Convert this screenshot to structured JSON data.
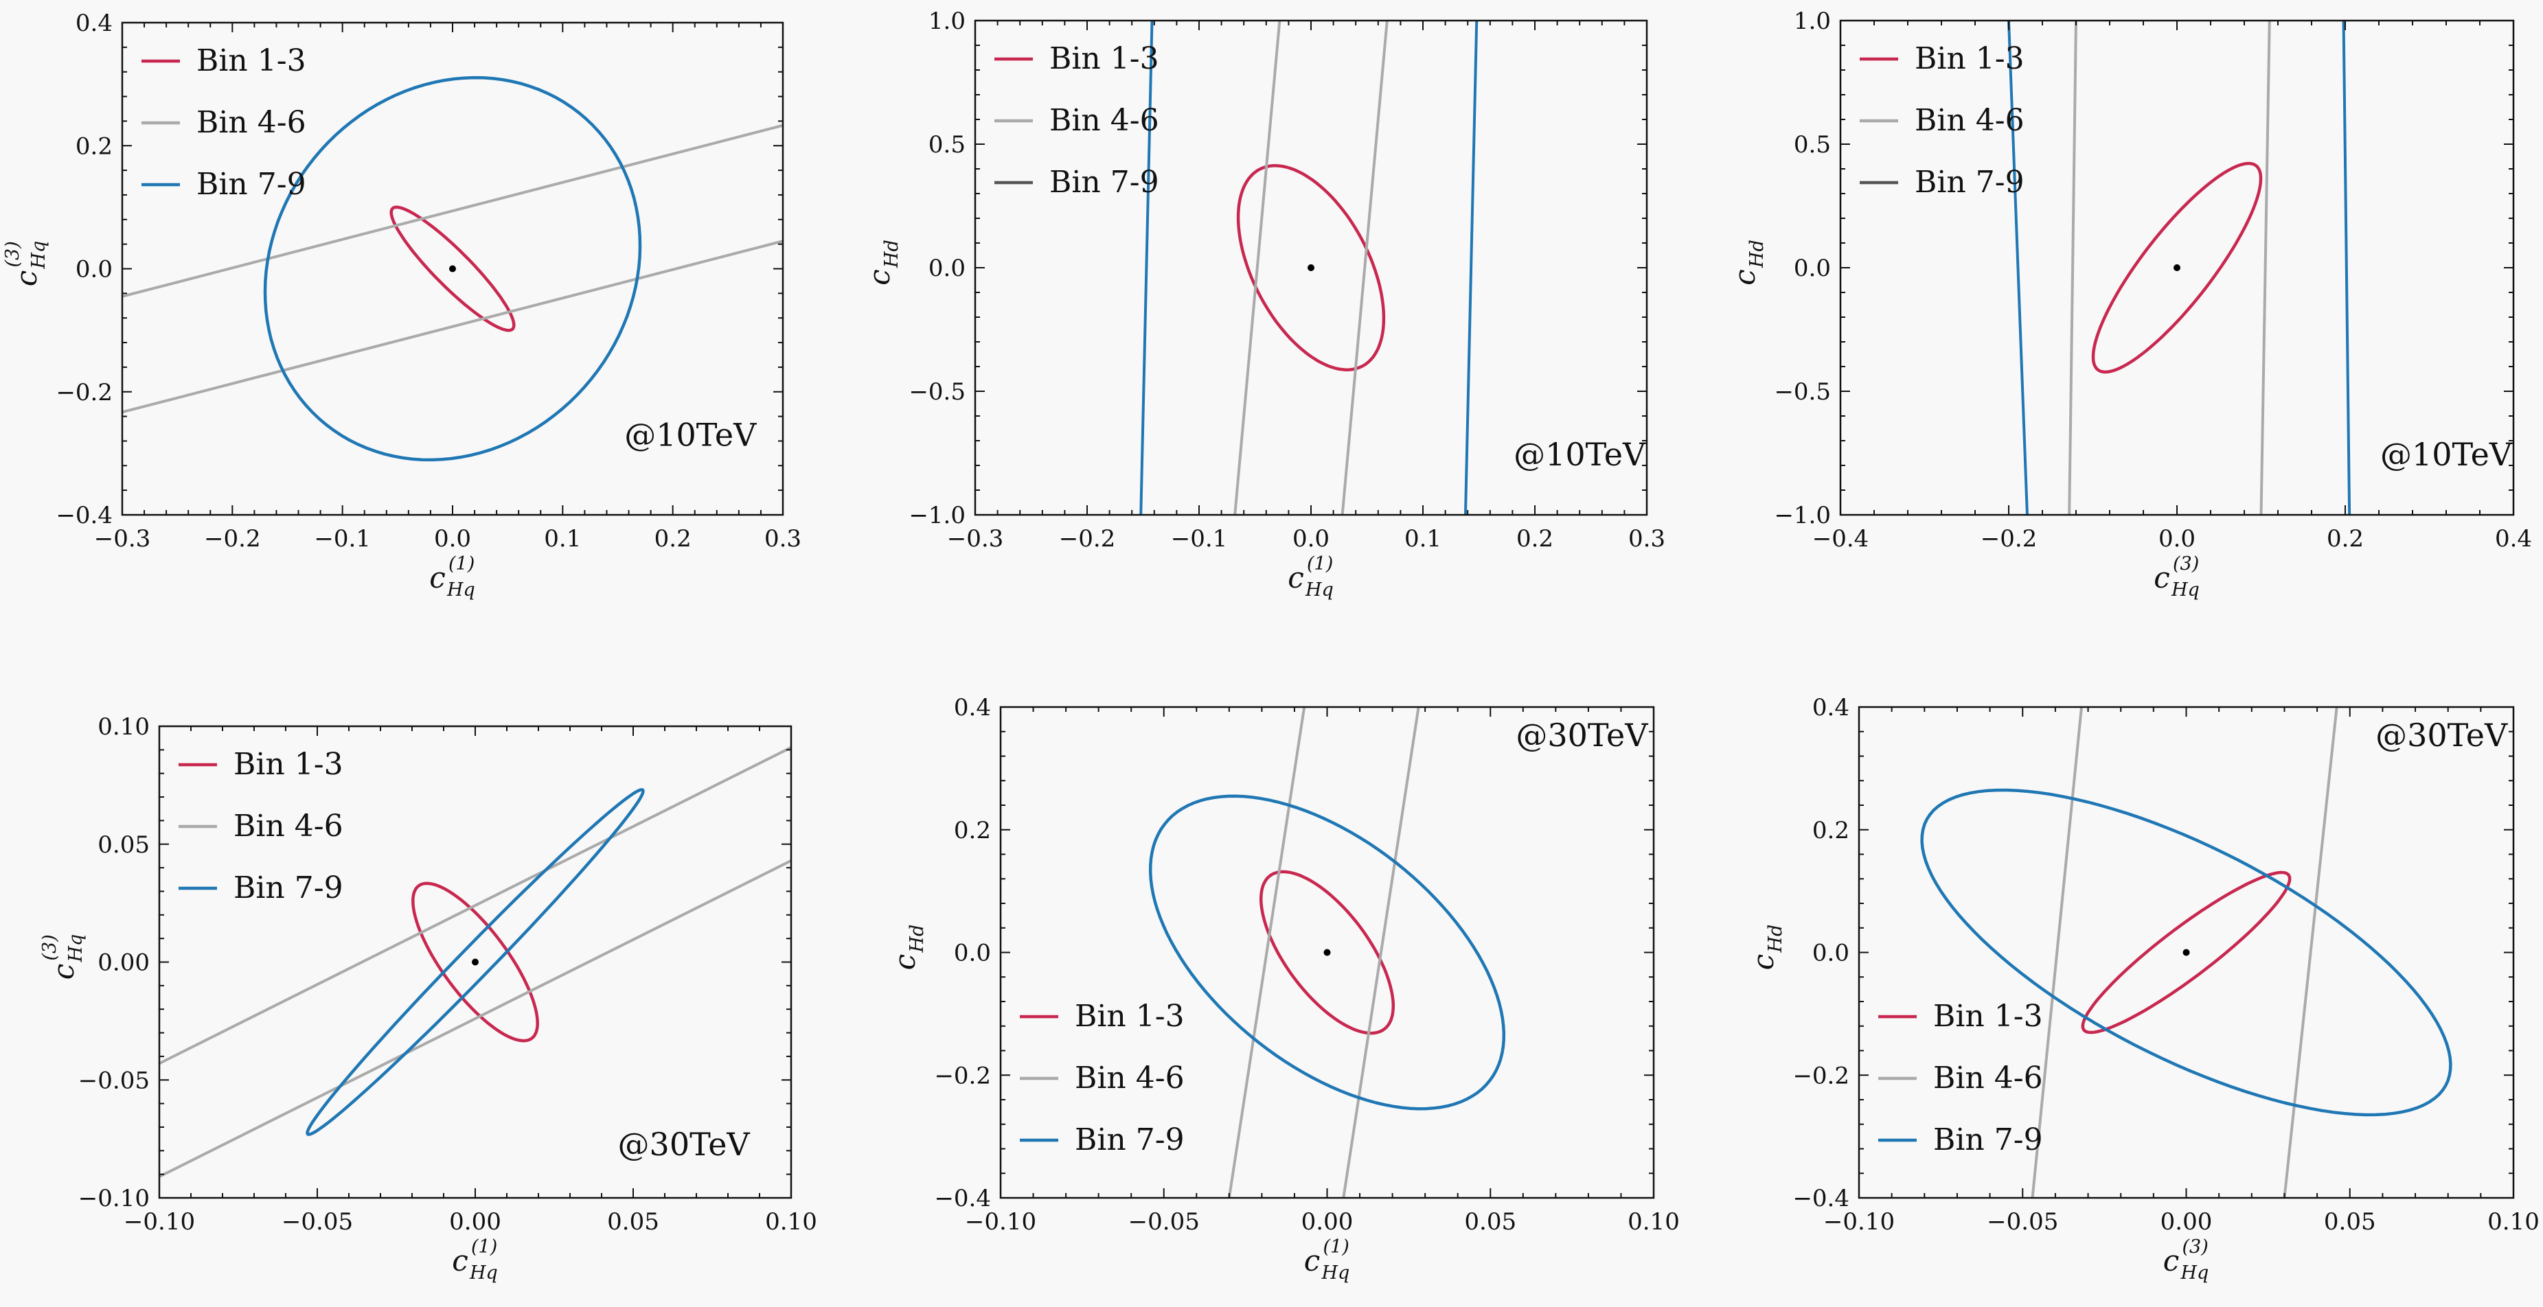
{
  "colors": {
    "bin_1_3": "#c8284f",
    "bin_4_6": "#aaaaaa",
    "bin_7_9": "#1f77b4",
    "bin_7_9_legend_panel_2_3": "#555555",
    "center": "#000000"
  },
  "chart_data": [
    {
      "type": "line",
      "panel": 1,
      "annotation": "@10TeV",
      "xlabel": "c_{Hq}^{(1)}",
      "ylabel": "c_{Hq}^{(3)}",
      "xlim": [
        -0.3,
        0.3
      ],
      "ylim": [
        -0.4,
        0.4
      ],
      "xticks": [
        "−0.3",
        "−0.2",
        "−0.1",
        "0.0",
        "0.1",
        "0.2",
        "0.3"
      ],
      "yticks": [
        "−0.4",
        "−0.2",
        "0.0",
        "0.2",
        "0.4"
      ],
      "legend": {
        "position": "top-left",
        "entries": [
          "Bin 1-3",
          "Bin 4-6",
          "Bin 7-9"
        ]
      },
      "series": [
        {
          "name": "Bin 1-3",
          "color": "#c8284f",
          "ellipse": {
            "cx": 0,
            "cy": 0,
            "points": [
              [
                -0.052,
                0.1
              ],
              [
                0.052,
                -0.1
              ],
              [
                -0.02,
                -0.005
              ],
              [
                0.02,
                0.005
              ]
            ]
          }
        },
        {
          "name": "Bin 4-6",
          "color": "#aaaaaa",
          "lines": [
            [
              [
                -0.3,
                -0.045
              ],
              [
                0.3,
                0.233
              ]
            ],
            [
              [
                -0.3,
                -0.233
              ],
              [
                0.3,
                0.045
              ]
            ]
          ]
        },
        {
          "name": "Bin 7-9",
          "color": "#1f77b4",
          "ellipse": {
            "cx": 0,
            "cy": 0,
            "points": [
              [
                -0.17,
                -0.02
              ],
              [
                0.17,
                0.02
              ],
              [
                0.01,
                0.31
              ],
              [
                -0.01,
                -0.31
              ]
            ]
          }
        }
      ]
    },
    {
      "type": "line",
      "panel": 2,
      "annotation": "@10TeV",
      "xlabel": "c_{Hq}^{(1)}",
      "ylabel": "c_{Hd}",
      "xlim": [
        -0.3,
        0.3
      ],
      "ylim": [
        -1.0,
        1.0
      ],
      "xticks": [
        "−0.3",
        "−0.2",
        "−0.1",
        "0.0",
        "0.1",
        "0.2",
        "0.3"
      ],
      "yticks": [
        "−1.0",
        "−0.5",
        "0.0",
        "0.5",
        "1.0"
      ],
      "legend": {
        "position": "top-right",
        "entries": [
          "Bin 1-3",
          "Bin 4-6",
          "Bin 7-9"
        ]
      },
      "series": [
        {
          "name": "Bin 1-3",
          "color": "#c8284f",
          "ellipse": {
            "cx": 0,
            "cy": 0,
            "points": [
              [
                -0.025,
                0.41
              ],
              [
                0.025,
                -0.41
              ],
              [
                -0.06,
                0.05
              ],
              [
                0.06,
                -0.05
              ]
            ]
          }
        },
        {
          "name": "Bin 4-6",
          "color": "#aaaaaa",
          "lines": [
            [
              [
                -0.068,
                -1.0
              ],
              [
                -0.028,
                1.0
              ]
            ],
            [
              [
                0.028,
                -1.0
              ],
              [
                0.068,
                1.0
              ]
            ]
          ]
        },
        {
          "name": "Bin 7-9",
          "color": "#1f77b4",
          "lines": [
            [
              [
                -0.152,
                -1.0
              ],
              [
                -0.142,
                1.0
              ]
            ],
            [
              [
                0.138,
                -1.0
              ],
              [
                0.148,
                1.0
              ]
            ]
          ]
        }
      ]
    },
    {
      "type": "line",
      "panel": 3,
      "annotation": "@10TeV",
      "xlabel": "c_{Hq}^{(3)}",
      "ylabel": "c_{Hd}",
      "xlim": [
        -0.4,
        0.4
      ],
      "ylim": [
        -1.0,
        1.0
      ],
      "xticks": [
        "−0.4",
        "−0.2",
        "0.0",
        "0.2",
        "0.4"
      ],
      "yticks": [
        "−1.0",
        "−0.5",
        "0.0",
        "0.5",
        "1.0"
      ],
      "legend": {
        "position": "top-right",
        "entries": [
          "Bin 1-3",
          "Bin 4-6",
          "Bin 7-9"
        ]
      },
      "series": [
        {
          "name": "Bin 1-3",
          "color": "#c8284f",
          "ellipse": {
            "cx": 0,
            "cy": 0,
            "points": [
              [
                0.095,
                0.41
              ],
              [
                -0.095,
                -0.41
              ],
              [
                -0.03,
                0.1
              ],
              [
                0.03,
                -0.1
              ]
            ]
          }
        },
        {
          "name": "Bin 4-6",
          "color": "#aaaaaa",
          "lines": [
            [
              [
                -0.128,
                -1.0
              ],
              [
                -0.12,
                1.0
              ]
            ],
            [
              [
                0.1,
                -1.0
              ],
              [
                0.11,
                1.0
              ]
            ]
          ]
        },
        {
          "name": "Bin 7-9",
          "color": "#1f77b4",
          "lines": [
            [
              [
                -0.178,
                -1.0
              ],
              [
                -0.2,
                1.0
              ]
            ],
            [
              [
                0.205,
                -1.0
              ],
              [
                0.198,
                1.0
              ]
            ]
          ]
        }
      ]
    },
    {
      "type": "line",
      "panel": 4,
      "annotation": "@30TeV",
      "xlabel": "c_{Hq}^{(1)}",
      "ylabel": "c_{Hq}^{(3)}",
      "xlim": [
        -0.1,
        0.1
      ],
      "ylim": [
        -0.1,
        0.1
      ],
      "xticks": [
        "−0.10",
        "−0.05",
        "0.00",
        "0.05",
        "0.10"
      ],
      "yticks": [
        "−0.10",
        "−0.05",
        "0.00",
        "0.05",
        "0.10"
      ],
      "legend": {
        "position": "top-left",
        "entries": [
          "Bin 1-3",
          "Bin 4-6",
          "Bin 7-9"
        ]
      },
      "series": [
        {
          "name": "Bin 1-3",
          "color": "#c8284f",
          "ellipse": {
            "cx": 0,
            "cy": 0,
            "points": [
              [
                -0.017,
                0.033
              ],
              [
                0.017,
                -0.033
              ],
              [
                -0.01,
                -0.005
              ],
              [
                0.01,
                0.005
              ]
            ]
          }
        },
        {
          "name": "Bin 4-6",
          "color": "#aaaaaa",
          "lines": [
            [
              [
                -0.1,
                -0.043
              ],
              [
                0.1,
                0.091
              ]
            ],
            [
              [
                -0.1,
                -0.091
              ],
              [
                0.1,
                0.043
              ]
            ]
          ]
        },
        {
          "name": "Bin 7-9",
          "color": "#1f77b4",
          "ellipse": {
            "cx": 0,
            "cy": 0,
            "points": [
              [
                0.053,
                0.073
              ],
              [
                -0.053,
                -0.073
              ],
              [
                -0.004,
                0.004
              ],
              [
                0.004,
                -0.004
              ]
            ]
          }
        }
      ]
    },
    {
      "type": "line",
      "panel": 5,
      "annotation": "@30TeV",
      "xlabel": "c_{Hq}^{(1)}",
      "ylabel": "c_{Hd}",
      "xlim": [
        -0.1,
        0.1
      ],
      "ylim": [
        -0.4,
        0.4
      ],
      "xticks": [
        "−0.10",
        "−0.05",
        "0.00",
        "0.05",
        "0.10"
      ],
      "yticks": [
        "−0.4",
        "−0.2",
        "0.0",
        "0.2",
        "0.4"
      ],
      "legend": {
        "position": "bottom-left",
        "entries": [
          "Bin 1-3",
          "Bin 4-6",
          "Bin 7-9"
        ]
      },
      "series": [
        {
          "name": "Bin 1-3",
          "color": "#c8284f",
          "ellipse": {
            "cx": 0,
            "cy": 0,
            "points": [
              [
                -0.011,
                0.13
              ],
              [
                0.011,
                -0.13
              ],
              [
                -0.017,
                0.02
              ],
              [
                0.017,
                -0.02
              ]
            ]
          }
        },
        {
          "name": "Bin 4-6",
          "color": "#aaaaaa",
          "lines": [
            [
              [
                -0.03,
                -0.4
              ],
              [
                -0.007,
                0.4
              ]
            ],
            [
              [
                0.005,
                -0.4
              ],
              [
                0.028,
                0.4
              ]
            ]
          ]
        },
        {
          "name": "Bin 7-9",
          "color": "#1f77b4",
          "ellipse": {
            "cx": 0,
            "cy": 0,
            "points": [
              [
                -0.015,
                0.245
              ],
              [
                0.015,
                -0.245
              ],
              [
                -0.052,
                0.07
              ],
              [
                0.052,
                -0.07
              ]
            ]
          }
        }
      ]
    },
    {
      "type": "line",
      "panel": 6,
      "annotation": "@30TeV",
      "xlabel": "c_{Hq}^{(3)}",
      "ylabel": "c_{Hd}",
      "xlim": [
        -0.1,
        0.1
      ],
      "ylim": [
        -0.4,
        0.4
      ],
      "xticks": [
        "−0.10",
        "−0.05",
        "0.00",
        "0.05",
        "0.10"
      ],
      "yticks": [
        "−0.4",
        "−0.2",
        "0.0",
        "0.2",
        "0.4"
      ],
      "legend": {
        "position": "bottom-left",
        "entries": [
          "Bin 1-3",
          "Bin 4-6",
          "Bin 7-9"
        ]
      },
      "series": [
        {
          "name": "Bin 1-3",
          "color": "#c8284f",
          "ellipse": {
            "cx": 0,
            "cy": 0,
            "points": [
              [
                0.03,
                0.13
              ],
              [
                -0.03,
                -0.13
              ],
              [
                -0.01,
                0.01
              ],
              [
                0.01,
                -0.01
              ]
            ]
          }
        },
        {
          "name": "Bin 4-6",
          "color": "#aaaaaa",
          "lines": [
            [
              [
                -0.047,
                -0.4
              ],
              [
                -0.032,
                0.4
              ]
            ],
            [
              [
                0.03,
                -0.4
              ],
              [
                0.046,
                0.4
              ]
            ]
          ]
        },
        {
          "name": "Bin 7-9",
          "color": "#1f77b4",
          "ellipse": {
            "cx": 0,
            "cy": 0,
            "points": [
              [
                -0.03,
                0.245
              ],
              [
                0.03,
                -0.245
              ],
              [
                -0.075,
                0.1
              ],
              [
                0.075,
                -0.1
              ]
            ]
          }
        }
      ]
    }
  ]
}
